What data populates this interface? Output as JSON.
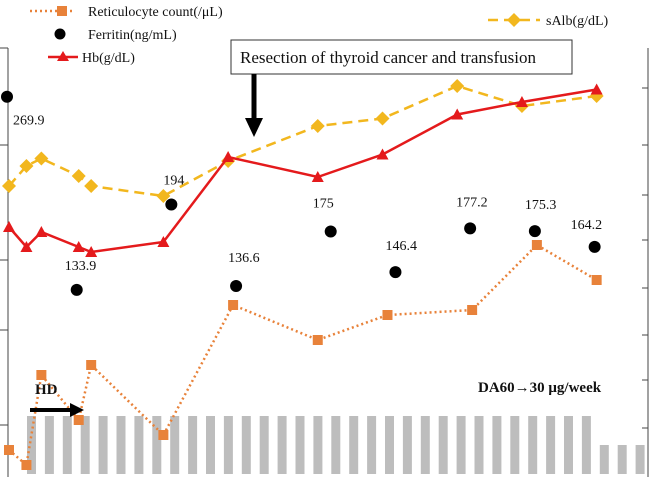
{
  "chart_data": {
    "type": "line",
    "title": "",
    "xlabel": "",
    "ylabel": "",
    "legend": [
      {
        "key": "retic",
        "label": "Reticulocyte count(/μL)"
      },
      {
        "key": "ferritin",
        "label": "Ferritin(ng/mL)"
      },
      {
        "key": "hb",
        "label": "Hb(g/dL)"
      },
      {
        "key": "salb",
        "label": "sAlb(g/dL)"
      }
    ],
    "x": [
      0,
      0.35,
      0.65,
      1.0,
      1.4,
      1.65,
      2.1,
      2.15,
      3.3,
      4.2,
      4.5,
      5.2,
      6.2,
      7.1,
      7.2,
      8.1,
      8.3,
      9.3,
      9.7,
      10.6,
      11.7,
      11.8,
      12.7,
      13.6
    ],
    "series": [
      {
        "name": "retic",
        "color": "#E8823A",
        "points": [
          [
            0,
            1.4
          ],
          [
            0.35,
            1.1
          ],
          [
            0.65,
            2.9
          ],
          [
            1.4,
            2.0
          ],
          [
            1.65,
            3.1
          ],
          [
            3.1,
            1.7
          ],
          [
            4.5,
            4.3
          ],
          [
            6.2,
            3.6
          ],
          [
            7.6,
            4.1
          ],
          [
            9.3,
            4.2
          ],
          [
            10.6,
            5.5
          ],
          [
            11.8,
            4.8
          ]
        ]
      },
      {
        "name": "ferritin",
        "color": "#000000",
        "points": [
          [
            0,
            269.9
          ],
          [
            1.4,
            133.9
          ],
          [
            3.3,
            194
          ],
          [
            4.6,
            136.6
          ],
          [
            6.5,
            175
          ],
          [
            7.8,
            146.4
          ],
          [
            9.3,
            177.2
          ],
          [
            10.6,
            175.3
          ],
          [
            11.8,
            164.2
          ]
        ]
      },
      {
        "name": "hb",
        "color": "#E41A1C",
        "points": [
          [
            0,
            5.5
          ],
          [
            0.35,
            5.1
          ],
          [
            0.65,
            5.4
          ],
          [
            1.4,
            5.1
          ],
          [
            1.65,
            5.0
          ],
          [
            3.1,
            5.2
          ],
          [
            4.4,
            6.9
          ],
          [
            6.2,
            6.5
          ],
          [
            7.5,
            6.95
          ],
          [
            9.0,
            7.75
          ],
          [
            10.3,
            8.0
          ],
          [
            11.8,
            8.25
          ]
        ]
      },
      {
        "name": "salb",
        "color": "#F2B71E",
        "points": [
          [
            0,
            6.4
          ],
          [
            0.35,
            6.8
          ],
          [
            0.65,
            6.95
          ],
          [
            1.4,
            6.6
          ],
          [
            1.65,
            6.4
          ],
          [
            3.1,
            6.2
          ],
          [
            4.4,
            6.9
          ],
          [
            6.2,
            7.6
          ],
          [
            7.5,
            7.75
          ],
          [
            9.0,
            8.4
          ],
          [
            10.3,
            8.0
          ],
          [
            11.8,
            8.2
          ]
        ]
      }
    ],
    "data_labels": [
      {
        "series": "ferritin",
        "text": "269.9"
      },
      {
        "series": "ferritin",
        "text": "133.9"
      },
      {
        "series": "ferritin",
        "text": "194"
      },
      {
        "series": "ferritin",
        "text": "136.6"
      },
      {
        "series": "ferritin",
        "text": "175"
      },
      {
        "series": "ferritin",
        "text": "146.4"
      },
      {
        "series": "ferritin",
        "text": "177.2"
      },
      {
        "series": "ferritin",
        "text": "175.3"
      },
      {
        "series": "ferritin",
        "text": "164.2"
      }
    ],
    "dose_bars": {
      "values": [
        1,
        1,
        1,
        1,
        1,
        1,
        1,
        1,
        1,
        1,
        1,
        1,
        1,
        1,
        1,
        1,
        1,
        1,
        1,
        1,
        1,
        1,
        1,
        1,
        1,
        1,
        1,
        1,
        1,
        1,
        1,
        1,
        0.5,
        0.5,
        0.5
      ],
      "color": "#BDBDBD"
    },
    "annotations": {
      "event": "Resection of thyroid cancer and transfusion",
      "hd": "HD",
      "dose": "DA60→30 μg/week"
    },
    "grid": false
  }
}
